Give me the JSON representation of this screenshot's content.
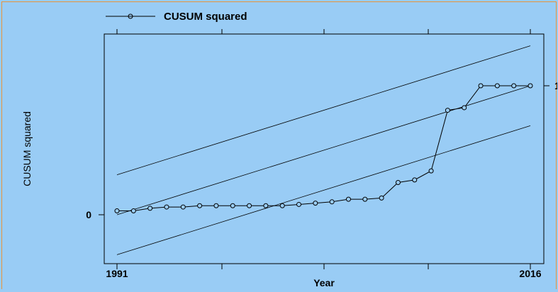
{
  "chart_data": {
    "type": "line",
    "legend": {
      "label": "CUSUM squared",
      "placement": "top-left"
    },
    "xlabel": "Year",
    "ylabel": "CUSUM squared",
    "x_ticks": [
      "1991",
      "",
      "",
      "Year",
      "",
      "2016"
    ],
    "x_tick_labels": [
      "1991",
      "2016"
    ],
    "y_tick_labels": [
      "0",
      "1"
    ],
    "xlim": [
      1991,
      2016
    ],
    "ylim": [
      -0.31,
      1.31
    ],
    "grid": false,
    "series": [
      {
        "name": "CUSUM squared",
        "x": [
          1991,
          1992,
          1993,
          1994,
          1995,
          1996,
          1997,
          1998,
          1999,
          2000,
          2001,
          2002,
          2003,
          2004,
          2005,
          2006,
          2007,
          2008,
          2009,
          2010,
          2011,
          2012,
          2013,
          2014,
          2015,
          2016
        ],
        "y": [
          0.03,
          0.03,
          0.05,
          0.06,
          0.06,
          0.07,
          0.07,
          0.07,
          0.07,
          0.07,
          0.07,
          0.08,
          0.09,
          0.1,
          0.12,
          0.12,
          0.13,
          0.25,
          0.27,
          0.34,
          0.81,
          0.83,
          1.0,
          1.0,
          1.0,
          1.0
        ]
      }
    ],
    "bounds": {
      "center": {
        "y_start": 0.0,
        "y_end": 1.0
      },
      "upper": {
        "y_start": 0.31,
        "y_end": 1.31
      },
      "lower": {
        "y_start": -0.31,
        "y_end": 0.69
      }
    }
  }
}
